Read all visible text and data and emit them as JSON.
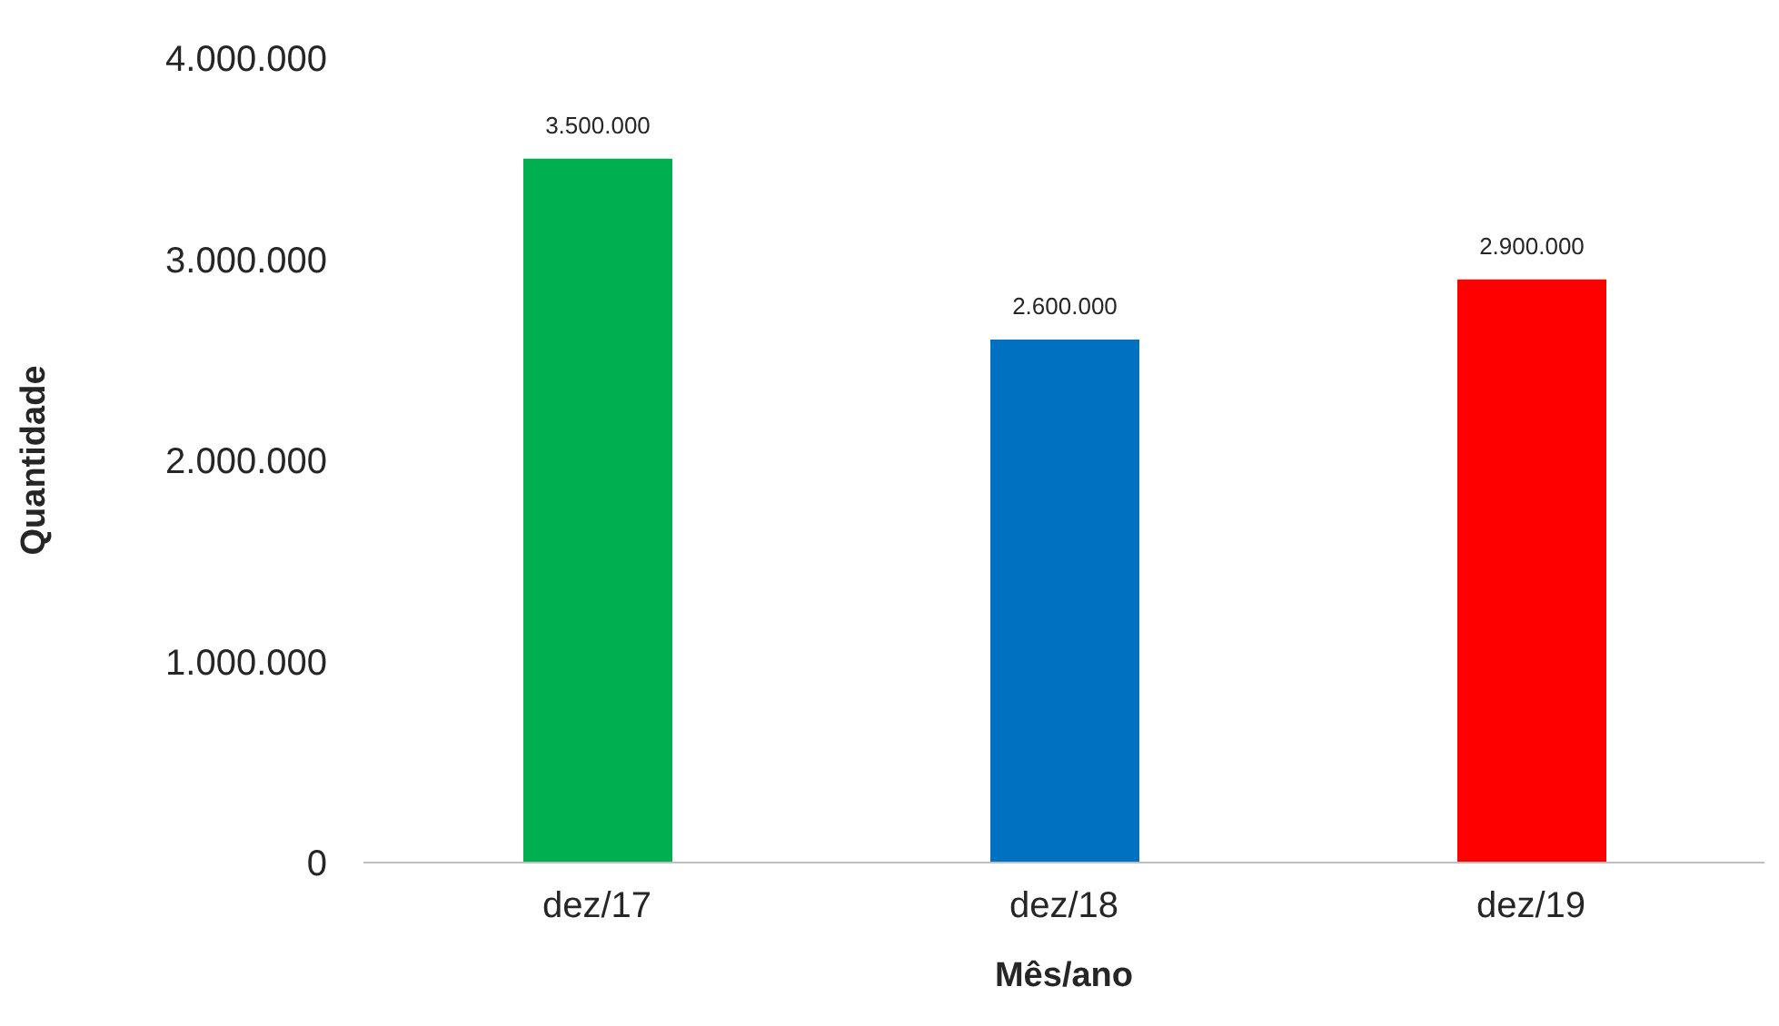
{
  "chart_data": {
    "type": "bar",
    "xlabel": "Mês/ano",
    "ylabel": "Quantidade",
    "categories": [
      "dez/17",
      "dez/18",
      "dez/19"
    ],
    "values": [
      3500000,
      2600000,
      2900000
    ],
    "colors": [
      "#00b050",
      "#0070c0",
      "#ff0000"
    ],
    "value_labels": [
      "3.500.000",
      "2.600.000",
      "2.900.000"
    ],
    "ylim": [
      0,
      4000000
    ],
    "yticks": [
      {
        "value": 0,
        "label": "0"
      },
      {
        "value": 1000000,
        "label": "1.000.000"
      },
      {
        "value": 2000000,
        "label": "2.000.000"
      },
      {
        "value": 3000000,
        "label": "3.000.000"
      },
      {
        "value": 4000000,
        "label": "4.000.000"
      }
    ],
    "grid": false,
    "legend": false
  }
}
